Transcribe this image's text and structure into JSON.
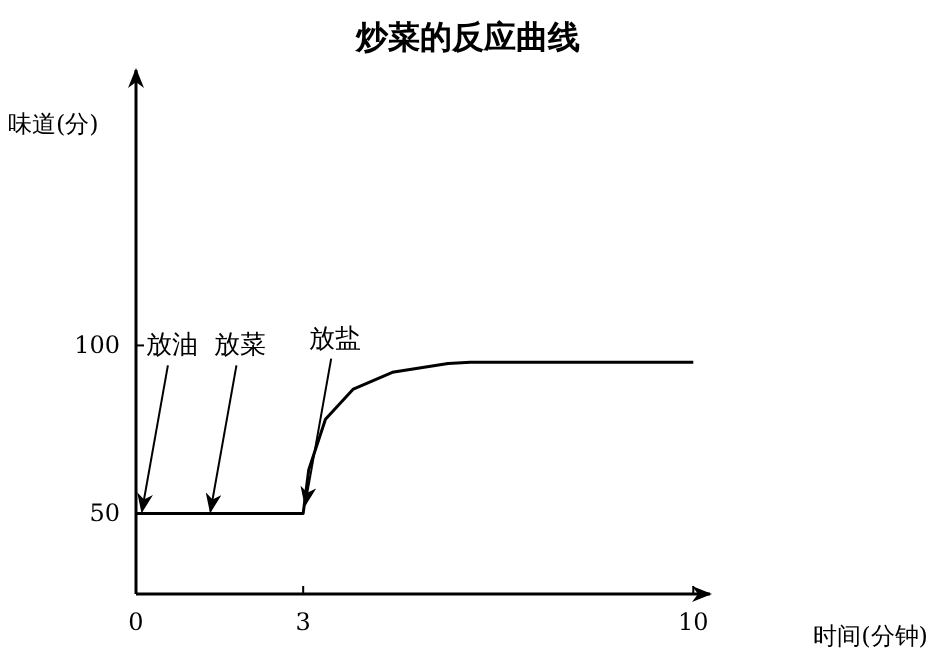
{
  "chart_data": {
    "type": "line",
    "title": "炒菜的反应曲线",
    "xlabel": "时间(分钟)",
    "ylabel": "味道(分)",
    "xlim": [
      0,
      10.3
    ],
    "ylim": [
      26,
      182
    ],
    "xticks": [
      0,
      3,
      10
    ],
    "yticks": [
      50,
      100
    ],
    "series": [
      {
        "color": "#000000",
        "x": [
          0,
          3,
          3.1,
          3.4,
          3.9,
          4.6,
          5.6,
          6,
          10
        ],
        "values": [
          50,
          50,
          63,
          78,
          87,
          92,
          94.6,
          95,
          95
        ]
      }
    ],
    "annotations": [
      {
        "text": "放油",
        "x": 0.07,
        "y": 50
      },
      {
        "text": "放菜",
        "x": 1.3,
        "y": 50
      },
      {
        "text": "放盐",
        "x": 3,
        "y": 52
      }
    ]
  }
}
